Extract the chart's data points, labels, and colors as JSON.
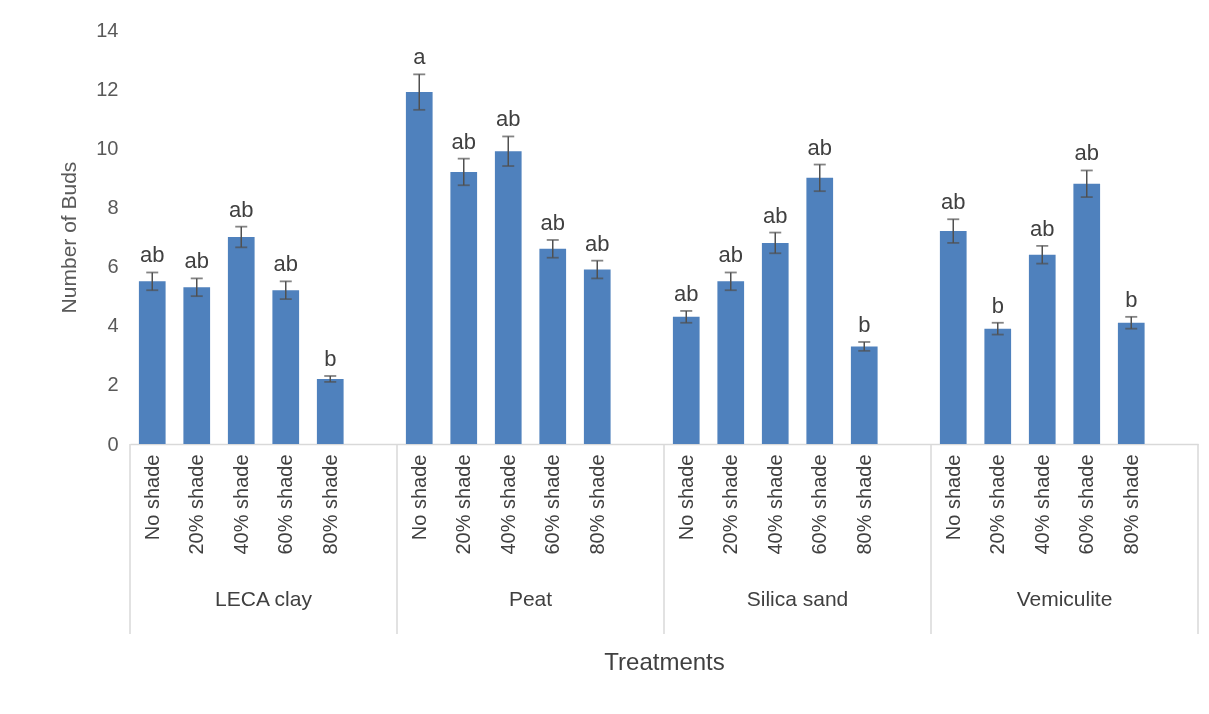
{
  "chart_data": {
    "type": "bar",
    "xlabel": "Treatments",
    "ylabel": "Number of Buds",
    "color": "#4f81bd",
    "categories": [
      "No shade",
      "20% shade",
      "40% shade",
      "60% shade",
      "80% shade",
      null,
      "No shade",
      "20% shade",
      "40% shade",
      "60% shade",
      "80% shade",
      null,
      "No shade",
      "20% shade",
      "40% shade",
      "60% shade",
      "80% shade",
      null,
      "No shade",
      "20% shade",
      "40% shade",
      "60% shade",
      "80% shade",
      null
    ],
    "values": [
      5.5,
      5.3,
      7.0,
      5.2,
      2.2,
      null,
      11.9,
      9.2,
      9.9,
      6.6,
      5.9,
      null,
      4.3,
      5.5,
      6.8,
      9.0,
      3.3,
      null,
      7.2,
      3.9,
      6.4,
      8.8,
      4.1,
      null
    ],
    "errors": [
      0.3,
      0.3,
      0.35,
      0.3,
      0.1,
      null,
      0.6,
      0.45,
      0.5,
      0.3,
      0.3,
      null,
      0.2,
      0.3,
      0.35,
      0.45,
      0.15,
      null,
      0.4,
      0.2,
      0.3,
      0.45,
      0.2,
      null
    ],
    "value_labels": [
      "ab",
      "ab",
      "ab",
      "ab",
      "b",
      null,
      "a",
      "ab",
      "ab",
      "ab",
      "ab",
      null,
      "ab",
      "ab",
      "ab",
      "ab",
      "b",
      null,
      "ab",
      "b",
      "ab",
      "ab",
      "b",
      null
    ],
    "annotations": [
      "LECA clay",
      "Peat",
      "Silica sand",
      "Vemiculite"
    ],
    "ylim": [
      0,
      14
    ],
    "yticks": [
      0,
      2,
      4,
      6,
      8,
      10,
      12,
      14
    ],
    "grid": false
  }
}
